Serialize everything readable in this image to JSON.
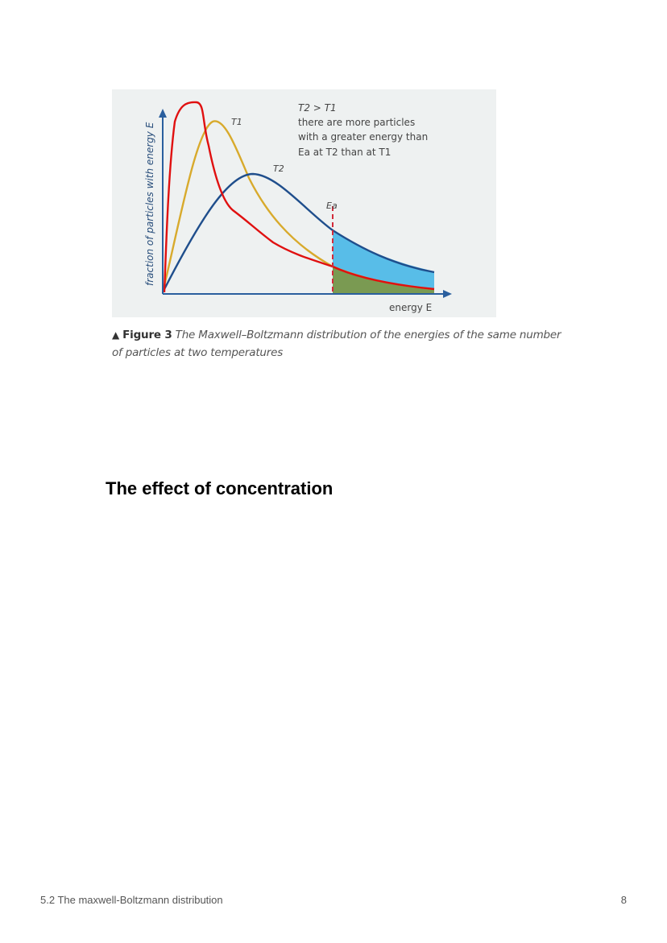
{
  "figure": {
    "ylabel": "fraction of particles with energy E",
    "xlabel": "energy E",
    "curve_label_t1": "T1",
    "curve_label_t2": "T2",
    "threshold_label": "Ea",
    "note_line1": "T2 > T1",
    "note_line2": "there are more particles",
    "note_line3": "with a greater energy than",
    "note_line4": "Ea at T2 than at T1",
    "colors": {
      "background": "#eef1f1",
      "axis": "#2a5f9e",
      "t1_curve": "#d8aa2c",
      "t2_curve": "#1f4e8c",
      "hand_drawn": "#e01010",
      "t2_area": "#58bde8",
      "t1_area": "#7a9a52",
      "ea_line": "#d22a3a"
    }
  },
  "caption": {
    "marker": "▲",
    "figure_label": "Figure 3",
    "text_line1": "The Maxwell–Boltzmann distribution of the energies of the same number",
    "text_line2": "of particles at two temperatures"
  },
  "heading": "The effect of concentration",
  "footer": {
    "title": "5.2 The maxwell-Boltzmann distribution",
    "page_number": "8"
  }
}
